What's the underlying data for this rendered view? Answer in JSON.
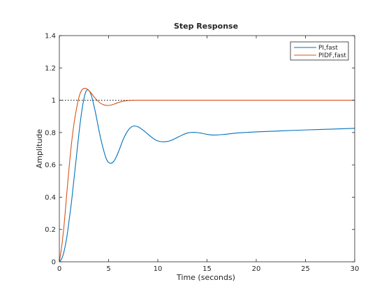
{
  "chart_data": {
    "type": "line",
    "title": "Step Response",
    "xlabel": "Time (seconds)",
    "ylabel": "Amplitude",
    "xlim": [
      0,
      30
    ],
    "ylim": [
      0,
      1.4
    ],
    "xticks": [
      0,
      5,
      10,
      15,
      20,
      25,
      30
    ],
    "xtick_labels": [
      "0",
      "5",
      "10",
      "15",
      "20",
      "25",
      "30"
    ],
    "yticks": [
      0,
      0.2,
      0.4,
      0.6,
      0.8,
      1.0,
      1.2,
      1.4
    ],
    "ytick_labels": [
      "0",
      "0.2",
      "0.4",
      "0.6",
      "0.8",
      "1",
      "1.2",
      "1.4"
    ],
    "grid": false,
    "legend_position": "top-right",
    "reference_line": {
      "y": 1.0,
      "x_range": [
        0,
        7.5
      ],
      "style": "dotted",
      "color": "#000000"
    },
    "series": [
      {
        "name": "PI,fast",
        "color": "#0072bd",
        "x": [
          0,
          0.25,
          0.5,
          0.75,
          1.0,
          1.25,
          1.5,
          1.75,
          2.0,
          2.25,
          2.5,
          2.75,
          3.0,
          3.25,
          3.5,
          3.75,
          4.0,
          4.25,
          4.5,
          4.75,
          5.0,
          5.25,
          5.5,
          5.75,
          6.0,
          6.25,
          6.5,
          7.0,
          7.5,
          8.0,
          8.5,
          9.0,
          9.5,
          10.0,
          10.5,
          11.0,
          11.5,
          12.0,
          12.5,
          13.0,
          13.5,
          14.0,
          14.5,
          15.0,
          15.5,
          16.0,
          16.5,
          17.0,
          18.0,
          19.0,
          20.0,
          22.0,
          24.0,
          26.0,
          28.0,
          30.0
        ],
        "y": [
          0,
          0.02,
          0.07,
          0.15,
          0.26,
          0.38,
          0.52,
          0.66,
          0.8,
          0.92,
          1.01,
          1.06,
          1.06,
          1.03,
          0.97,
          0.9,
          0.82,
          0.75,
          0.69,
          0.64,
          0.615,
          0.61,
          0.62,
          0.645,
          0.68,
          0.72,
          0.76,
          0.815,
          0.84,
          0.835,
          0.815,
          0.79,
          0.765,
          0.748,
          0.743,
          0.745,
          0.755,
          0.77,
          0.785,
          0.797,
          0.801,
          0.8,
          0.795,
          0.789,
          0.785,
          0.785,
          0.787,
          0.79,
          0.797,
          0.801,
          0.804,
          0.809,
          0.814,
          0.818,
          0.822,
          0.826
        ]
      },
      {
        "name": "PIDF,fast",
        "color": "#d95319",
        "x": [
          0,
          0.25,
          0.5,
          0.75,
          1.0,
          1.25,
          1.5,
          1.75,
          2.0,
          2.25,
          2.5,
          2.75,
          3.0,
          3.25,
          3.5,
          3.75,
          4.0,
          4.25,
          4.5,
          4.75,
          5.0,
          5.25,
          5.5,
          5.75,
          6.0,
          6.5,
          7.0,
          7.5,
          8.0,
          10.0,
          15.0,
          20.0,
          25.0,
          30.0
        ],
        "y": [
          0,
          0.1,
          0.24,
          0.42,
          0.59,
          0.74,
          0.86,
          0.95,
          1.02,
          1.06,
          1.073,
          1.072,
          1.06,
          1.043,
          1.023,
          1.005,
          0.99,
          0.979,
          0.972,
          0.968,
          0.968,
          0.97,
          0.975,
          0.98,
          0.986,
          0.994,
          0.998,
          1.0,
          1.0,
          1.0,
          1.0,
          1.0,
          1.0,
          1.0
        ]
      }
    ]
  }
}
